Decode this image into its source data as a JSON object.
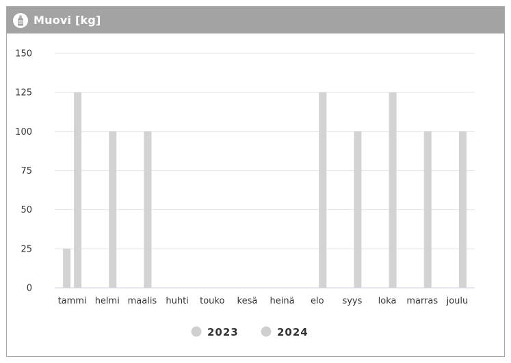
{
  "widget": {
    "title": "Muovi [kg]",
    "icon": "plastic-bottle-icon"
  },
  "colors": {
    "header_bg": "#a3a3a3",
    "bar": "#d3d3d3",
    "legend_marker": "#cfcfcf",
    "grid": "#e6e6e6"
  },
  "chart_data": {
    "type": "bar",
    "title": "Muovi [kg]",
    "xlabel": "",
    "ylabel": "",
    "ylim": [
      0,
      150
    ],
    "yticks": [
      0,
      25,
      50,
      75,
      100,
      125,
      150
    ],
    "grid": true,
    "legend_position": "bottom",
    "categories": [
      "tammi",
      "helmi",
      "maalis",
      "huhti",
      "touko",
      "kesä",
      "heinä",
      "elo",
      "syys",
      "loka",
      "marras",
      "joulu"
    ],
    "series": [
      {
        "name": "2023",
        "values": [
          25,
          0,
          0,
          0,
          0,
          0,
          0,
          0,
          0,
          0,
          0,
          0
        ]
      },
      {
        "name": "2024",
        "values": [
          125,
          100,
          100,
          0,
          0,
          0,
          0,
          125,
          100,
          125,
          100,
          100
        ]
      }
    ]
  }
}
